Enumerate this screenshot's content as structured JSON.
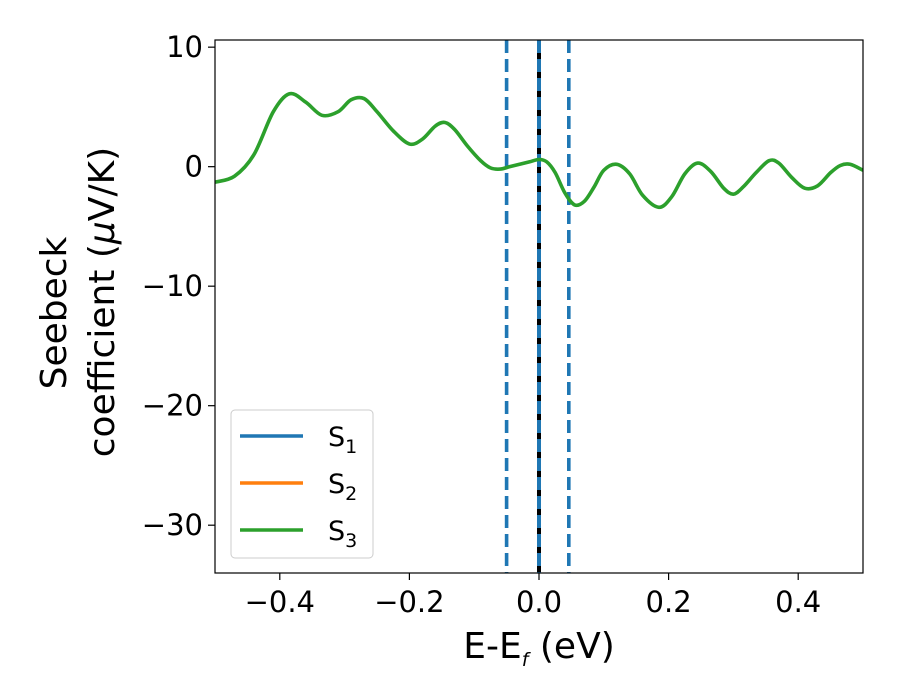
{
  "chart_data": {
    "type": "line",
    "xlabel": {
      "main": "E-E",
      "sub": "f",
      "tail": " (eV)"
    },
    "ylabel": {
      "line1": "Seebeck",
      "line2_pre": "coefficient  (",
      "mu": "μ",
      "line2_post": "V/K)"
    },
    "xlim": [
      -0.5,
      0.5
    ],
    "ylim": [
      -34,
      10.6
    ],
    "xticks": [
      {
        "v": -0.4,
        "label": "−0.4"
      },
      {
        "v": -0.2,
        "label": "−0.2"
      },
      {
        "v": 0.0,
        "label": "0.0"
      },
      {
        "v": 0.2,
        "label": "0.2"
      },
      {
        "v": 0.4,
        "label": "0.4"
      }
    ],
    "yticks": [
      {
        "v": 10,
        "label": "10"
      },
      {
        "v": 0,
        "label": "0"
      },
      {
        "v": -10,
        "label": "−10"
      },
      {
        "v": -20,
        "label": "−20"
      },
      {
        "v": -30,
        "label": "−30"
      }
    ],
    "vlines": [
      {
        "x": -0.05,
        "color": "#1f77b4",
        "style": "dashed"
      },
      {
        "x": 0.0,
        "color": "#000000",
        "style": "solid"
      },
      {
        "x": 0.0,
        "color": "#1f77b4",
        "style": "dashed-overlay"
      },
      {
        "x": 0.046,
        "color": "#1f77b4",
        "style": "dashed"
      }
    ],
    "legend_position": "lower-left",
    "series": [
      {
        "name": "S",
        "sub": "1",
        "color": "#1f77b4",
        "points": []
      },
      {
        "name": "S",
        "sub": "2",
        "color": "#ff7f0e",
        "points": []
      },
      {
        "name": "S",
        "sub": "3",
        "color": "#2ca02c",
        "points": [
          [
            -0.5,
            -1.3
          ],
          [
            -0.47,
            -0.8
          ],
          [
            -0.44,
            1.0
          ],
          [
            -0.41,
            4.6
          ],
          [
            -0.385,
            6.1
          ],
          [
            -0.36,
            5.4
          ],
          [
            -0.335,
            4.3
          ],
          [
            -0.31,
            4.6
          ],
          [
            -0.29,
            5.6
          ],
          [
            -0.27,
            5.7
          ],
          [
            -0.25,
            4.6
          ],
          [
            -0.225,
            3.0
          ],
          [
            -0.2,
            1.9
          ],
          [
            -0.18,
            2.3
          ],
          [
            -0.16,
            3.4
          ],
          [
            -0.145,
            3.7
          ],
          [
            -0.13,
            3.1
          ],
          [
            -0.11,
            1.7
          ],
          [
            -0.09,
            0.5
          ],
          [
            -0.075,
            -0.1
          ],
          [
            -0.06,
            -0.2
          ],
          [
            -0.045,
            0.0
          ],
          [
            -0.03,
            0.2
          ],
          [
            -0.015,
            0.4
          ],
          [
            0.0,
            0.6
          ],
          [
            0.012,
            0.4
          ],
          [
            0.025,
            -0.5
          ],
          [
            0.04,
            -2.2
          ],
          [
            0.055,
            -3.2
          ],
          [
            0.07,
            -2.9
          ],
          [
            0.085,
            -1.7
          ],
          [
            0.1,
            -0.3
          ],
          [
            0.12,
            0.2
          ],
          [
            0.14,
            -0.6
          ],
          [
            0.16,
            -2.4
          ],
          [
            0.185,
            -3.4
          ],
          [
            0.205,
            -2.5
          ],
          [
            0.225,
            -0.6
          ],
          [
            0.245,
            0.3
          ],
          [
            0.265,
            -0.4
          ],
          [
            0.285,
            -1.8
          ],
          [
            0.3,
            -2.3
          ],
          [
            0.315,
            -1.7
          ],
          [
            0.335,
            -0.5
          ],
          [
            0.355,
            0.5
          ],
          [
            0.37,
            0.3
          ],
          [
            0.39,
            -0.9
          ],
          [
            0.41,
            -1.8
          ],
          [
            0.43,
            -1.6
          ],
          [
            0.45,
            -0.5
          ],
          [
            0.465,
            0.1
          ],
          [
            0.48,
            0.2
          ],
          [
            0.5,
            -0.3
          ]
        ]
      }
    ]
  }
}
